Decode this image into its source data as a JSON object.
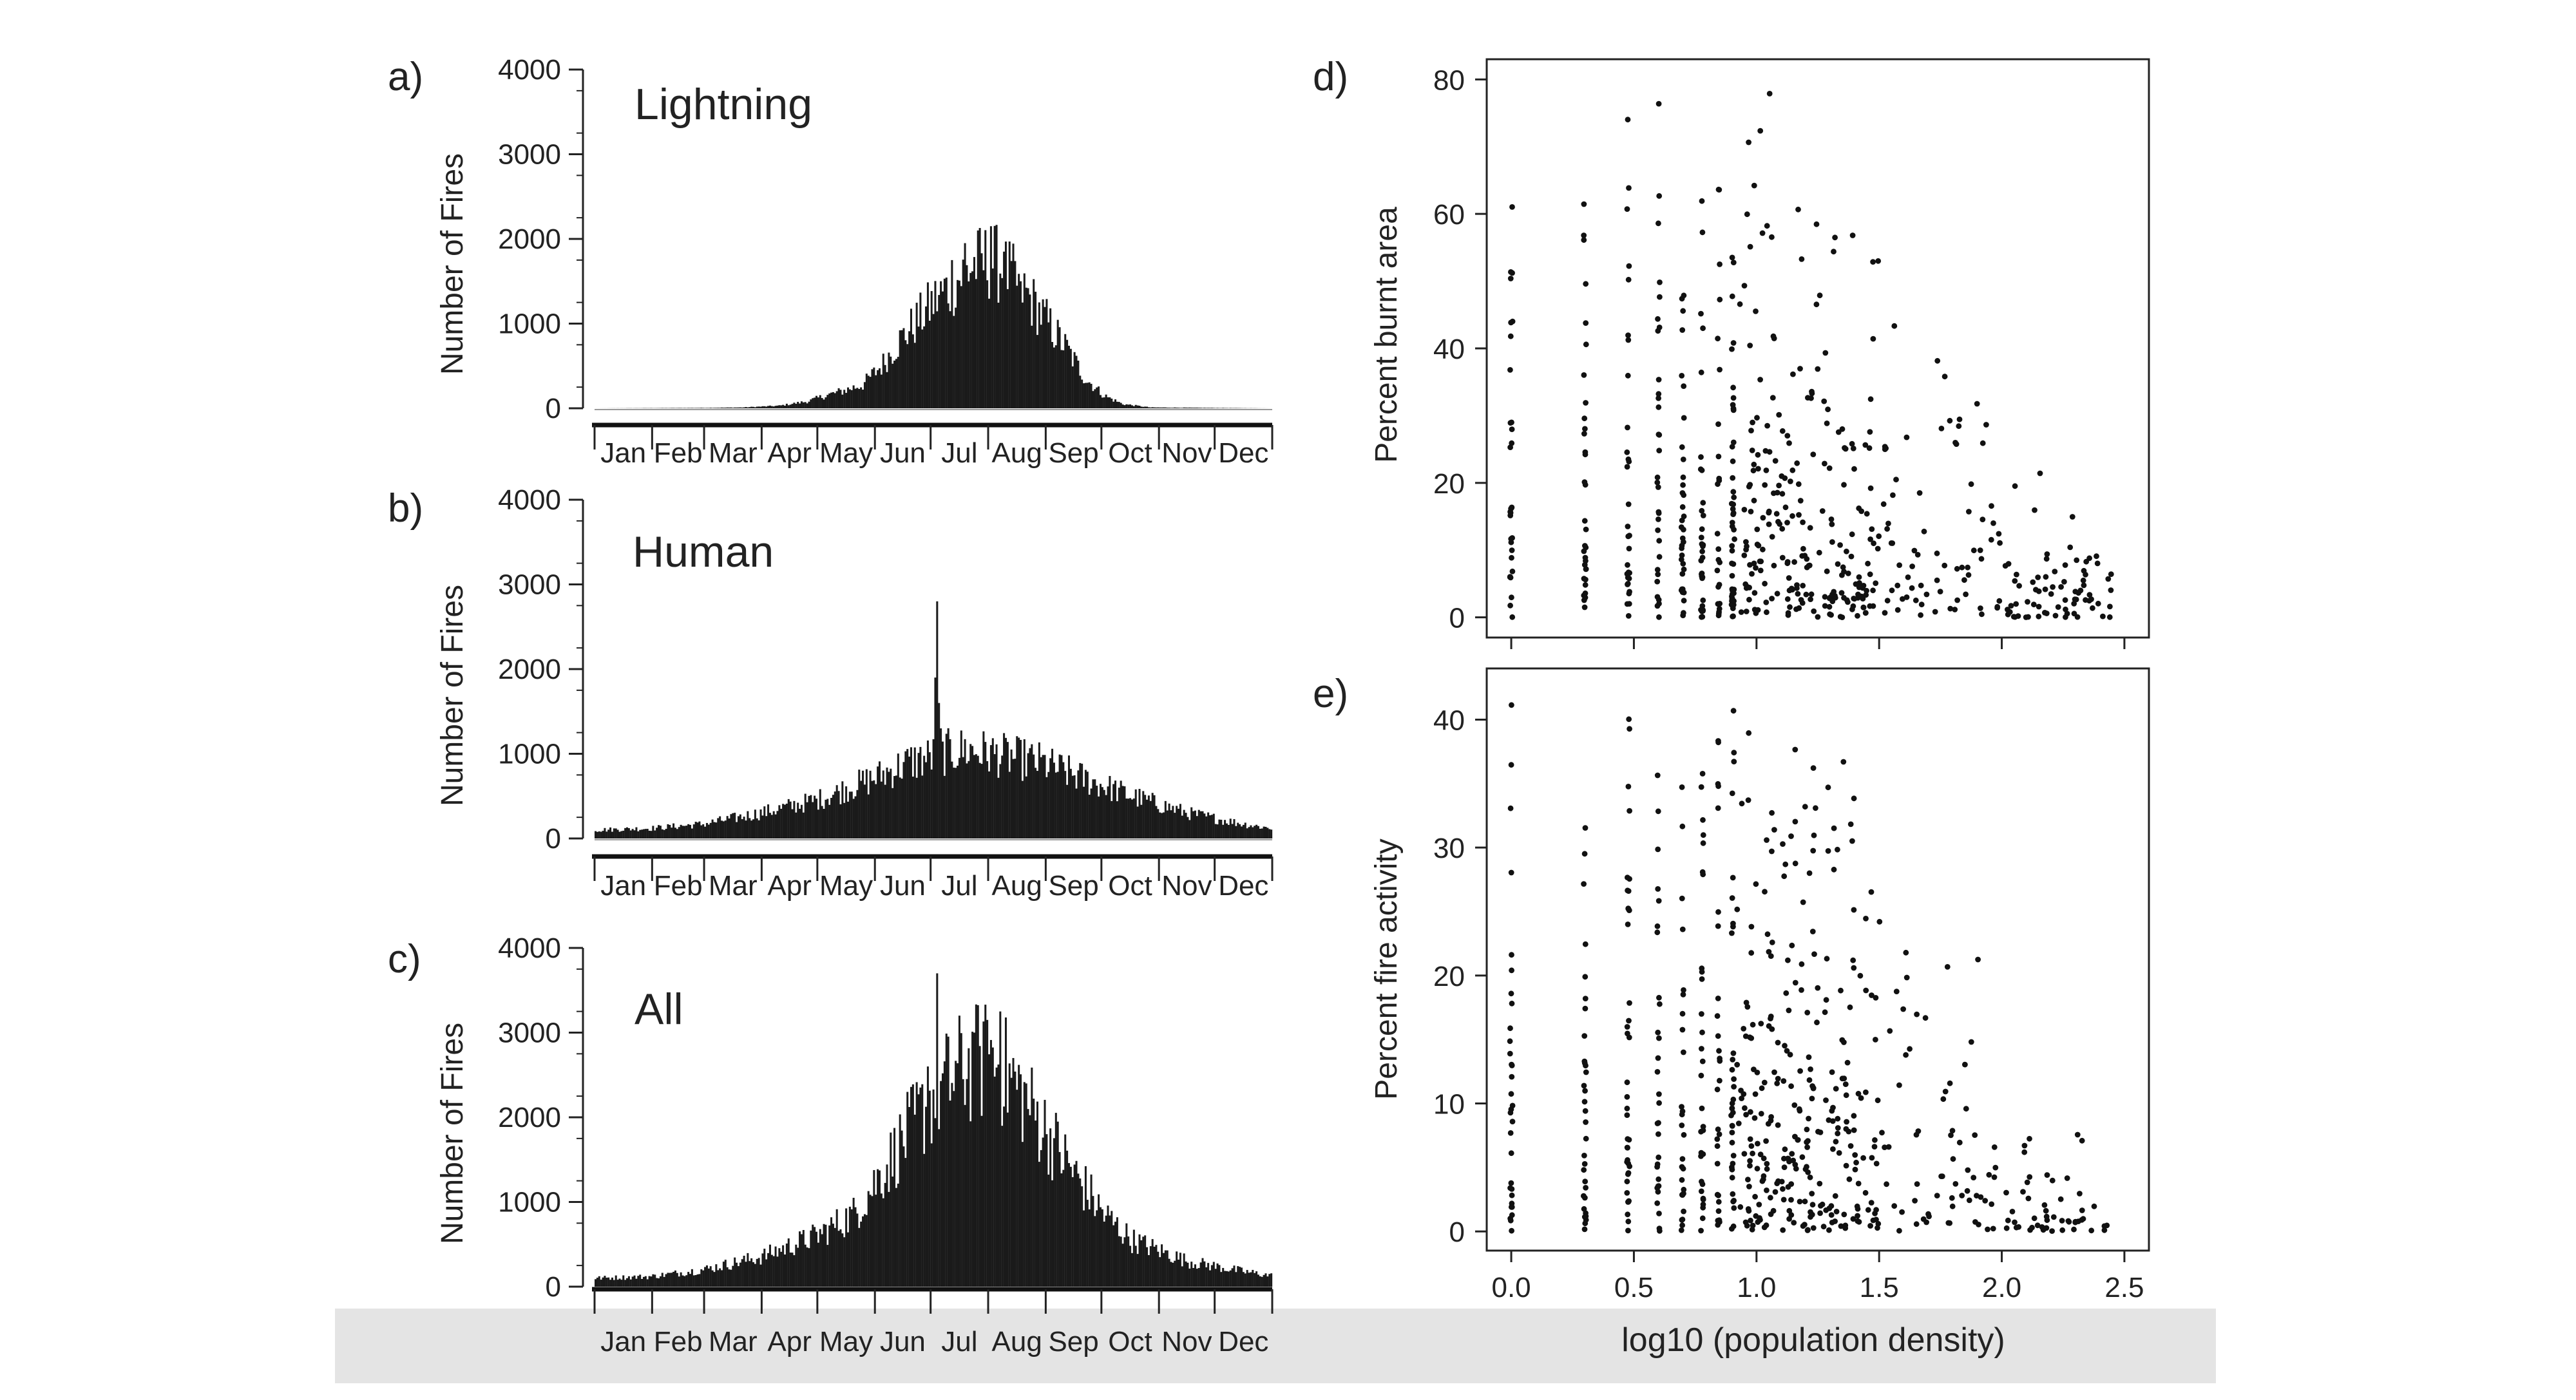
{
  "chart_data": [
    {
      "panel": "a)",
      "title": "Lightning",
      "type": "bar",
      "ylabel": "Number of Fires",
      "xlabel": "",
      "ylim": [
        0,
        4000
      ],
      "yticks": [
        0,
        1000,
        2000,
        3000,
        4000
      ],
      "month_labels": [
        "Jan",
        "Feb",
        "Mar",
        "Apr",
        "May",
        "Jun",
        "Jul",
        "Aug",
        "Sep",
        "Oct",
        "Nov",
        "Dec"
      ],
      "x_unit": "day of year",
      "anchors": [
        [
          1,
          0
        ],
        [
          60,
          5
        ],
        [
          80,
          10
        ],
        [
          100,
          30
        ],
        [
          115,
          80
        ],
        [
          125,
          150
        ],
        [
          135,
          210
        ],
        [
          145,
          280
        ],
        [
          155,
          500
        ],
        [
          165,
          800
        ],
        [
          175,
          1050
        ],
        [
          185,
          1300
        ],
        [
          195,
          1500
        ],
        [
          205,
          1700
        ],
        [
          215,
          1750
        ],
        [
          225,
          1550
        ],
        [
          235,
          1300
        ],
        [
          245,
          1000
        ],
        [
          255,
          700
        ],
        [
          265,
          350
        ],
        [
          275,
          150
        ],
        [
          285,
          50
        ],
        [
          300,
          10
        ],
        [
          365,
          0
        ]
      ],
      "spikes": [
        [
          200,
          1950
        ],
        [
          207,
          2100
        ],
        [
          214,
          2150
        ],
        [
          221,
          1850
        ],
        [
          193,
          1750
        ],
        [
          187,
          1500
        ],
        [
          230,
          1500
        ]
      ],
      "color": "#1a1a1a"
    },
    {
      "panel": "b)",
      "title": "Human",
      "type": "bar",
      "ylabel": "Number of Fires",
      "xlabel": "",
      "ylim": [
        0,
        4000
      ],
      "yticks": [
        0,
        1000,
        2000,
        3000,
        4000
      ],
      "month_labels": [
        "Jan",
        "Feb",
        "Mar",
        "Apr",
        "May",
        "Jun",
        "Jul",
        "Aug",
        "Sep",
        "Oct",
        "Nov",
        "Dec"
      ],
      "x_unit": "day of year",
      "anchors": [
        [
          1,
          100
        ],
        [
          31,
          120
        ],
        [
          59,
          170
        ],
        [
          90,
          300
        ],
        [
          120,
          450
        ],
        [
          150,
          700
        ],
        [
          170,
          900
        ],
        [
          180,
          950
        ],
        [
          186,
          1000
        ],
        [
          200,
          1050
        ],
        [
          215,
          1000
        ],
        [
          240,
          900
        ],
        [
          265,
          700
        ],
        [
          290,
          500
        ],
        [
          320,
          300
        ],
        [
          350,
          170
        ],
        [
          365,
          120
        ]
      ],
      "spikes": [
        [
          185,
          2800
        ],
        [
          184,
          1900
        ],
        [
          186,
          1600
        ],
        [
          187,
          1300
        ]
      ],
      "color": "#1a1a1a"
    },
    {
      "panel": "c)",
      "title": "All",
      "type": "bar",
      "ylabel": "Number of Fires",
      "xlabel": "",
      "ylim": [
        0,
        4000
      ],
      "yticks": [
        0,
        1000,
        2000,
        3000,
        4000
      ],
      "month_labels": [
        "Jan",
        "Feb",
        "Mar",
        "Apr",
        "May",
        "Jun",
        "Jul",
        "Aug",
        "Sep",
        "Oct",
        "Nov",
        "Dec"
      ],
      "x_unit": "day of year",
      "anchors": [
        [
          1,
          100
        ],
        [
          31,
          120
        ],
        [
          59,
          200
        ],
        [
          90,
          350
        ],
        [
          120,
          600
        ],
        [
          140,
          850
        ],
        [
          160,
          1500
        ],
        [
          175,
          2000
        ],
        [
          185,
          2300
        ],
        [
          200,
          2600
        ],
        [
          215,
          2700
        ],
        [
          230,
          2300
        ],
        [
          245,
          1800
        ],
        [
          260,
          1300
        ],
        [
          275,
          850
        ],
        [
          290,
          550
        ],
        [
          320,
          300
        ],
        [
          350,
          180
        ],
        [
          365,
          130
        ]
      ],
      "spikes": [
        [
          185,
          3700
        ],
        [
          180,
          2600
        ],
        [
          205,
          3000
        ],
        [
          212,
          3150
        ],
        [
          219,
          3250
        ],
        [
          226,
          2700
        ],
        [
          233,
          2400
        ]
      ],
      "color": "#1a1a1a"
    },
    {
      "panel": "d)",
      "type": "scatter",
      "xlabel": "",
      "ylabel": "Percent burnt  area",
      "xlim": [
        -0.1,
        2.6
      ],
      "ylim": [
        -3,
        83
      ],
      "yticks": [
        0,
        20,
        40,
        60,
        80
      ],
      "xticks": [
        0.0,
        0.5,
        1.0,
        1.5,
        2.0,
        2.5
      ],
      "x_columns": [
        0.0,
        0.3,
        0.477,
        0.6,
        0.699,
        0.778,
        0.845,
        0.903
      ],
      "point_count": 650,
      "y_decay": 48,
      "y_max": 80,
      "color": "#111111"
    },
    {
      "panel": "e)",
      "type": "scatter",
      "xlabel": "log10 (population density)",
      "ylabel": "Percent fire activity",
      "xlim": [
        -0.1,
        2.6
      ],
      "ylim": [
        -1.5,
        44
      ],
      "yticks": [
        0,
        10,
        20,
        30,
        40
      ],
      "xticks": [
        0.0,
        0.5,
        1.0,
        1.5,
        2.0,
        2.5
      ],
      "xtick_labels": [
        "0.0",
        "0.5",
        "1.0",
        "1.5",
        "2.0",
        "2.5"
      ],
      "x_columns": [
        0.0,
        0.3,
        0.477,
        0.6,
        0.699,
        0.778,
        0.845,
        0.903
      ],
      "point_count": 650,
      "y_decay": 30,
      "y_max": 42,
      "color": "#111111"
    }
  ]
}
